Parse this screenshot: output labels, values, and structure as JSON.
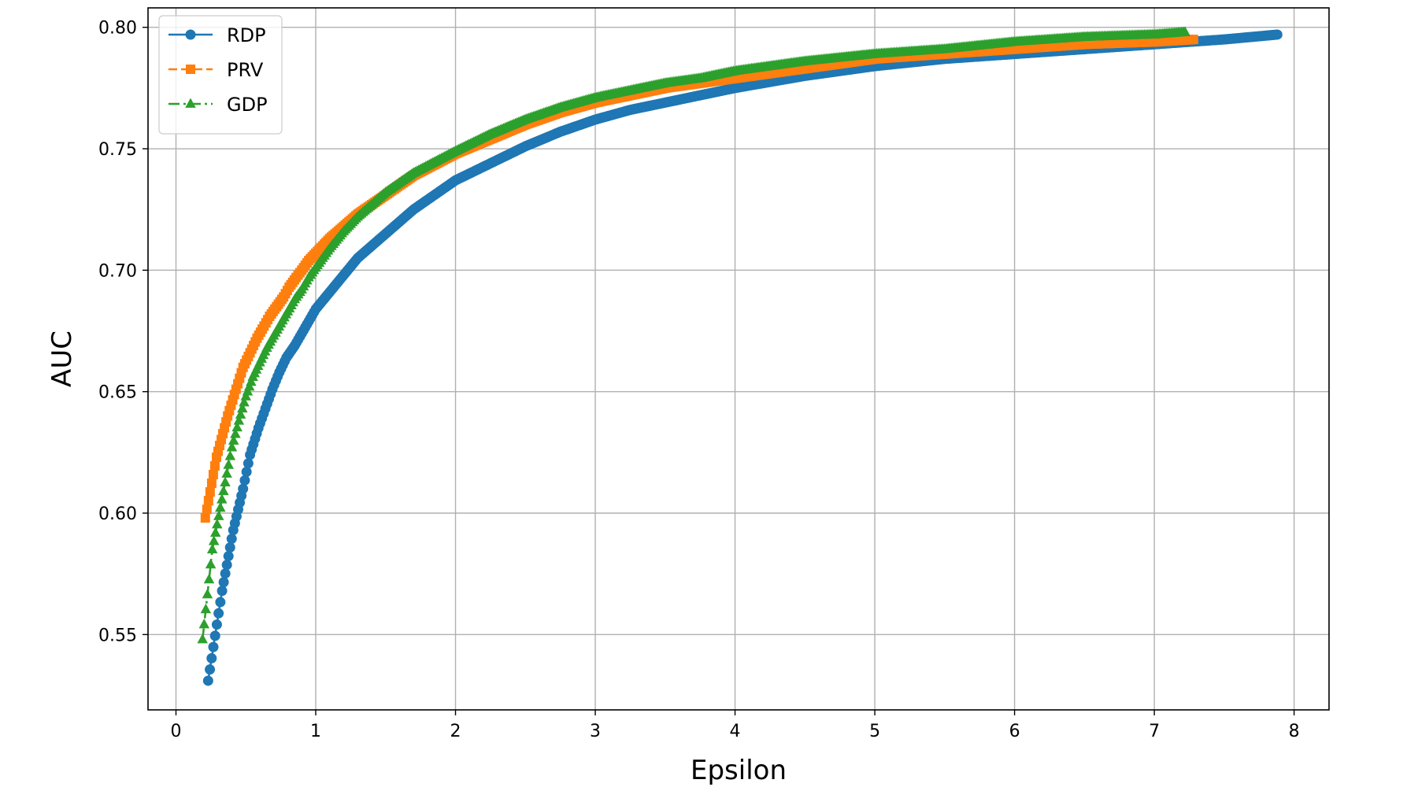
{
  "chart_data": {
    "type": "line",
    "title": "",
    "xlabel": "Epsilon",
    "ylabel": "AUC",
    "xlim": [
      -0.2,
      8.25
    ],
    "ylim": [
      0.519,
      0.808
    ],
    "xticks": [
      0,
      1,
      2,
      3,
      4,
      5,
      6,
      7,
      8
    ],
    "xtick_labels": [
      "0",
      "1",
      "2",
      "3",
      "4",
      "5",
      "6",
      "7",
      "8"
    ],
    "yticks": [
      0.55,
      0.6,
      0.65,
      0.7,
      0.75,
      0.8
    ],
    "ytick_labels": [
      "0.55",
      "0.60",
      "0.65",
      "0.70",
      "0.75",
      "0.80"
    ],
    "grid": true,
    "legend_position": "top-left",
    "series": [
      {
        "name": "RDP",
        "color": "#1f77b4",
        "linestyle": "solid",
        "marker": "circle",
        "x": [
          0.23,
          0.33,
          0.41,
          0.48,
          0.53,
          0.59,
          0.64,
          0.69,
          0.74,
          0.79,
          0.85,
          0.9,
          0.95,
          1.0,
          1.1,
          1.2,
          1.3,
          1.4,
          1.5,
          1.6,
          1.7,
          1.8,
          1.9,
          2.0,
          2.25,
          2.5,
          2.75,
          3.0,
          3.25,
          3.5,
          3.75,
          4.0,
          4.5,
          5.0,
          5.5,
          6.0,
          6.5,
          7.0,
          7.5,
          7.88
        ],
        "y": [
          0.531,
          0.568,
          0.593,
          0.61,
          0.624,
          0.635,
          0.643,
          0.651,
          0.658,
          0.664,
          0.669,
          0.674,
          0.679,
          0.684,
          0.691,
          0.698,
          0.705,
          0.71,
          0.715,
          0.72,
          0.725,
          0.729,
          0.733,
          0.737,
          0.744,
          0.751,
          0.757,
          0.762,
          0.766,
          0.769,
          0.772,
          0.775,
          0.78,
          0.784,
          0.787,
          0.789,
          0.791,
          0.793,
          0.795,
          0.797
        ]
      },
      {
        "name": "PRV",
        "color": "#ff7f0e",
        "linestyle": "dashed",
        "marker": "square",
        "x": [
          0.21,
          0.29,
          0.37,
          0.43,
          0.48,
          0.53,
          0.58,
          0.63,
          0.67,
          0.72,
          0.77,
          0.81,
          0.86,
          0.9,
          0.95,
          1.0,
          1.1,
          1.2,
          1.3,
          1.4,
          1.5,
          1.6,
          1.7,
          1.8,
          1.9,
          2.0,
          2.25,
          2.5,
          2.75,
          3.0,
          3.25,
          3.5,
          3.75,
          4.0,
          4.5,
          5.0,
          5.5,
          6.0,
          6.5,
          7.0,
          7.28
        ],
        "y": [
          0.598,
          0.623,
          0.64,
          0.651,
          0.66,
          0.666,
          0.672,
          0.677,
          0.681,
          0.685,
          0.689,
          0.693,
          0.697,
          0.7,
          0.704,
          0.707,
          0.713,
          0.718,
          0.723,
          0.727,
          0.731,
          0.735,
          0.739,
          0.742,
          0.745,
          0.748,
          0.754,
          0.76,
          0.765,
          0.769,
          0.772,
          0.775,
          0.777,
          0.779,
          0.783,
          0.787,
          0.789,
          0.791,
          0.793,
          0.794,
          0.795
        ]
      },
      {
        "name": "GDP",
        "color": "#2ca02c",
        "linestyle": "dashdot",
        "marker": "triangle",
        "x": [
          0.19,
          0.26,
          0.34,
          0.4,
          0.45,
          0.5,
          0.55,
          0.6,
          0.65,
          0.7,
          0.75,
          0.8,
          0.85,
          0.9,
          0.95,
          1.0,
          1.1,
          1.2,
          1.3,
          1.4,
          1.5,
          1.6,
          1.7,
          1.8,
          1.9,
          2.0,
          2.25,
          2.5,
          2.75,
          3.0,
          3.25,
          3.5,
          3.75,
          4.0,
          4.5,
          5.0,
          5.5,
          6.0,
          6.5,
          7.0,
          7.22
        ],
        "y": [
          0.548,
          0.585,
          0.609,
          0.627,
          0.638,
          0.648,
          0.656,
          0.662,
          0.668,
          0.673,
          0.678,
          0.683,
          0.688,
          0.692,
          0.697,
          0.701,
          0.709,
          0.716,
          0.722,
          0.727,
          0.732,
          0.736,
          0.74,
          0.743,
          0.746,
          0.749,
          0.756,
          0.762,
          0.767,
          0.771,
          0.774,
          0.777,
          0.779,
          0.782,
          0.786,
          0.789,
          0.791,
          0.794,
          0.796,
          0.797,
          0.798
        ]
      }
    ]
  }
}
